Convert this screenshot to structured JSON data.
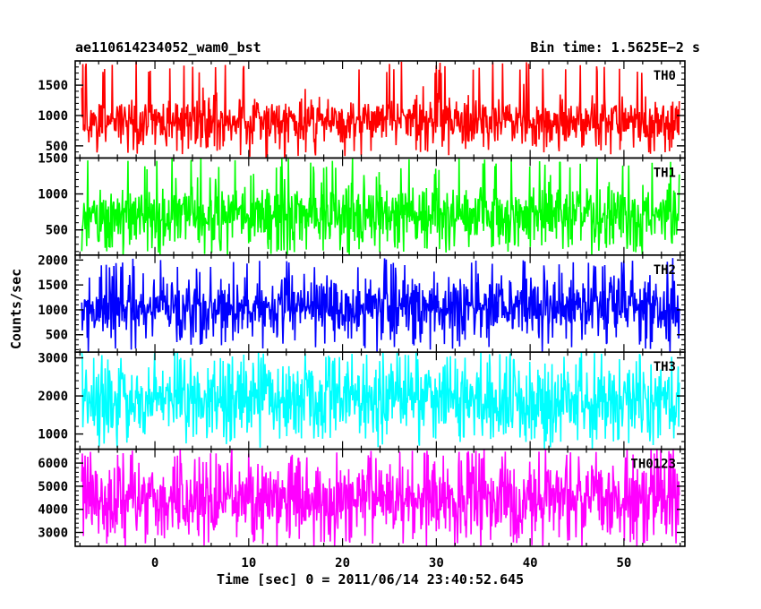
{
  "chart_data": {
    "type": "line",
    "title": "ae110614234052_wam0_bst",
    "bin_time_label": "Bin time: 1.5625E−2 s",
    "xlabel": "Time [sec] 0 = 2011/06/14 23:40:52.645",
    "ylabel": "Counts/sec",
    "x_range": [
      -8.5,
      56.5
    ],
    "x_data_range": [
      -7.8,
      55.9
    ],
    "x_ticks": [
      0,
      10,
      20,
      30,
      40,
      50
    ],
    "x_minor_step": 2,
    "panels": [
      {
        "name": "TH0",
        "color": "#ff0000",
        "ylim": [
          300,
          1900
        ],
        "yticks": [
          500,
          1000,
          1500
        ],
        "minor_step": 100,
        "mean": 900,
        "spread": 200,
        "max_peak": 1900,
        "min_dip": 330
      },
      {
        "name": "TH1",
        "color": "#00ff00",
        "ylim": [
          150,
          1500
        ],
        "yticks": [
          500,
          1000,
          1500
        ],
        "minor_step": 100,
        "mean": 700,
        "spread": 220,
        "max_peak": 1500,
        "min_dip": 160
      },
      {
        "name": "TH2",
        "color": "#0000ff",
        "ylim": [
          150,
          2100
        ],
        "yticks": [
          500,
          1000,
          1500,
          2000
        ],
        "minor_step": 100,
        "mean": 1050,
        "spread": 300,
        "max_peak": 2050,
        "min_dip": 200
      },
      {
        "name": "TH3",
        "color": "#00ffff",
        "ylim": [
          600,
          3150
        ],
        "yticks": [
          1000,
          2000,
          3000
        ],
        "minor_step": 200,
        "mean": 1900,
        "spread": 500,
        "max_peak": 3150,
        "min_dip": 700
      },
      {
        "name": "TH0123",
        "color": "#ff00ff",
        "ylim": [
          2400,
          6600
        ],
        "yticks": [
          3000,
          4000,
          5000,
          6000
        ],
        "minor_step": 200,
        "mean": 4500,
        "spread": 800,
        "max_peak": 6600,
        "min_dip": 2450
      }
    ]
  }
}
